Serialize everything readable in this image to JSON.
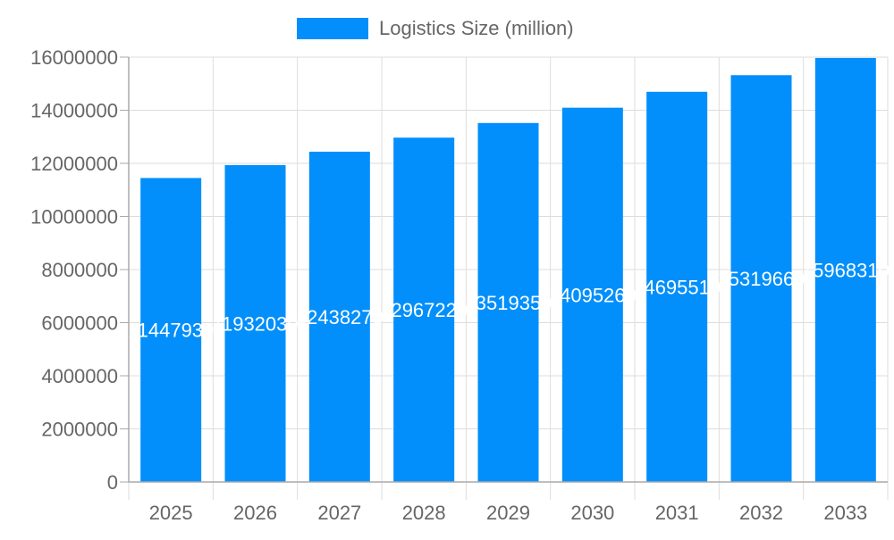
{
  "chart_data": {
    "type": "bar",
    "title": "",
    "xlabel": "",
    "ylabel": "",
    "categories": [
      "2025",
      "2026",
      "2027",
      "2028",
      "2029",
      "2030",
      "2031",
      "2032",
      "2033"
    ],
    "series": [
      {
        "name": "Logistics Size (million)",
        "color": "#028ffb",
        "values": [
          11447930,
          11932030,
          12438270,
          12967220,
          13519350,
          14095260,
          14695510,
          15319660,
          15968310
        ]
      }
    ],
    "ylim": [
      0,
      16000000
    ],
    "yticks": [
      "0",
      "2000000",
      "4000000",
      "6000000",
      "8000000",
      "10000000",
      "12000000",
      "14000000",
      "16000000"
    ],
    "grid": true,
    "legend": "top",
    "data_labels": true
  }
}
